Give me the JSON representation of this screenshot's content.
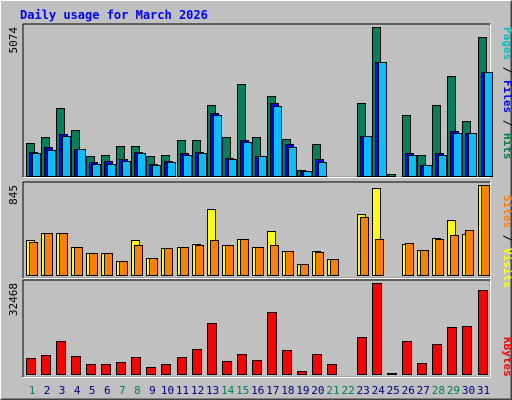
{
  "chart_data": {
    "type": "bar",
    "title": "Daily usage for March 2026",
    "categories": [
      "1",
      "2",
      "3",
      "4",
      "5",
      "6",
      "7",
      "8",
      "9",
      "10",
      "11",
      "12",
      "13",
      "14",
      "15",
      "16",
      "17",
      "18",
      "19",
      "20",
      "21",
      "22",
      "23",
      "24",
      "25",
      "26",
      "27",
      "28",
      "29",
      "30",
      "31"
    ],
    "weekend_days": [
      1,
      7,
      8,
      14,
      15,
      21,
      22,
      28,
      29
    ],
    "panels": [
      {
        "id": "hits",
        "ymax": 5074,
        "max_label": "5074",
        "legend": [
          {
            "text": "Pages",
            "color": "#00c0c0"
          },
          {
            "text": " / ",
            "color": "#000000"
          },
          {
            "text": "Files",
            "color": "#0000ff"
          },
          {
            "text": " / ",
            "color": "#000000"
          },
          {
            "text": "Hits",
            "color": "#008040"
          }
        ],
        "series": [
          {
            "name": "Hits",
            "color": "#00805c",
            "values": [
              1150,
              1350,
              2350,
              1600,
              700,
              750,
              1050,
              1050,
              700,
              750,
              1250,
              1250,
              2450,
              1350,
              3150,
              1350,
              2750,
              1300,
              250,
              1100,
              0,
              0,
              2500,
              5074,
              100,
              2100,
              750,
              2450,
              3400,
              1900,
              4750
            ]
          },
          {
            "name": "Files",
            "color": "#0000ff",
            "values": [
              850,
              1000,
              1450,
              950,
              500,
              550,
              600,
              850,
              450,
              550,
              800,
              850,
              2150,
              650,
              1250,
              700,
              2500,
              1100,
              200,
              600,
              0,
              0,
              1400,
              3900,
              0,
              800,
              400,
              800,
              1550,
              1500,
              3550
            ]
          },
          {
            "name": "Pages",
            "color": "#00c0ff",
            "values": [
              800,
              900,
              1400,
              950,
              450,
              450,
              550,
              800,
              400,
              500,
              750,
              800,
              2100,
              600,
              1200,
              700,
              2400,
              1000,
              200,
              500,
              0,
              0,
              1400,
              3900,
              0,
              750,
              400,
              750,
              1500,
              1500,
              3550
            ]
          }
        ]
      },
      {
        "id": "visits",
        "ymax": 845,
        "max_label": "845",
        "legend": [
          {
            "text": "Sites",
            "color": "#ff8000"
          },
          {
            "text": " / ",
            "color": "#000000"
          },
          {
            "text": "Visits",
            "color": "#ffff00"
          }
        ],
        "series": [
          {
            "name": "Visits",
            "color": "#ffff00",
            "values": [
              330,
              400,
              400,
              270,
              210,
              210,
              140,
              330,
              170,
              260,
              270,
              300,
              620,
              290,
              340,
              270,
              420,
              230,
              110,
              230,
              160,
              0,
              580,
              820,
              0,
              300,
              240,
              350,
              520,
              390,
              845
            ]
          },
          {
            "name": "Sites",
            "color": "#ff8000",
            "values": [
              320,
              400,
              400,
              270,
              210,
              210,
              140,
              290,
              170,
              260,
              270,
              290,
              330,
              290,
              340,
              270,
              290,
              230,
              110,
              220,
              160,
              0,
              550,
              340,
              0,
              310,
              240,
              340,
              380,
              430,
              845
            ]
          }
        ]
      },
      {
        "id": "kbytes",
        "ymax": 32468,
        "max_label": "32468",
        "legend": [
          {
            "text": "KBytes",
            "color": "#ff0000"
          }
        ],
        "series": [
          {
            "name": "KBytes",
            "color": "#ff0000",
            "values": [
              6000,
              7000,
              12000,
              6800,
              3800,
              3800,
              4500,
              6300,
              2700,
              3800,
              6500,
              9200,
              18200,
              4800,
              7300,
              5200,
              22200,
              8900,
              1500,
              7500,
              4000,
              0,
              13400,
              32468,
              800,
              12100,
              4300,
              11000,
              17000,
              17400,
              30000
            ]
          }
        ]
      }
    ]
  }
}
